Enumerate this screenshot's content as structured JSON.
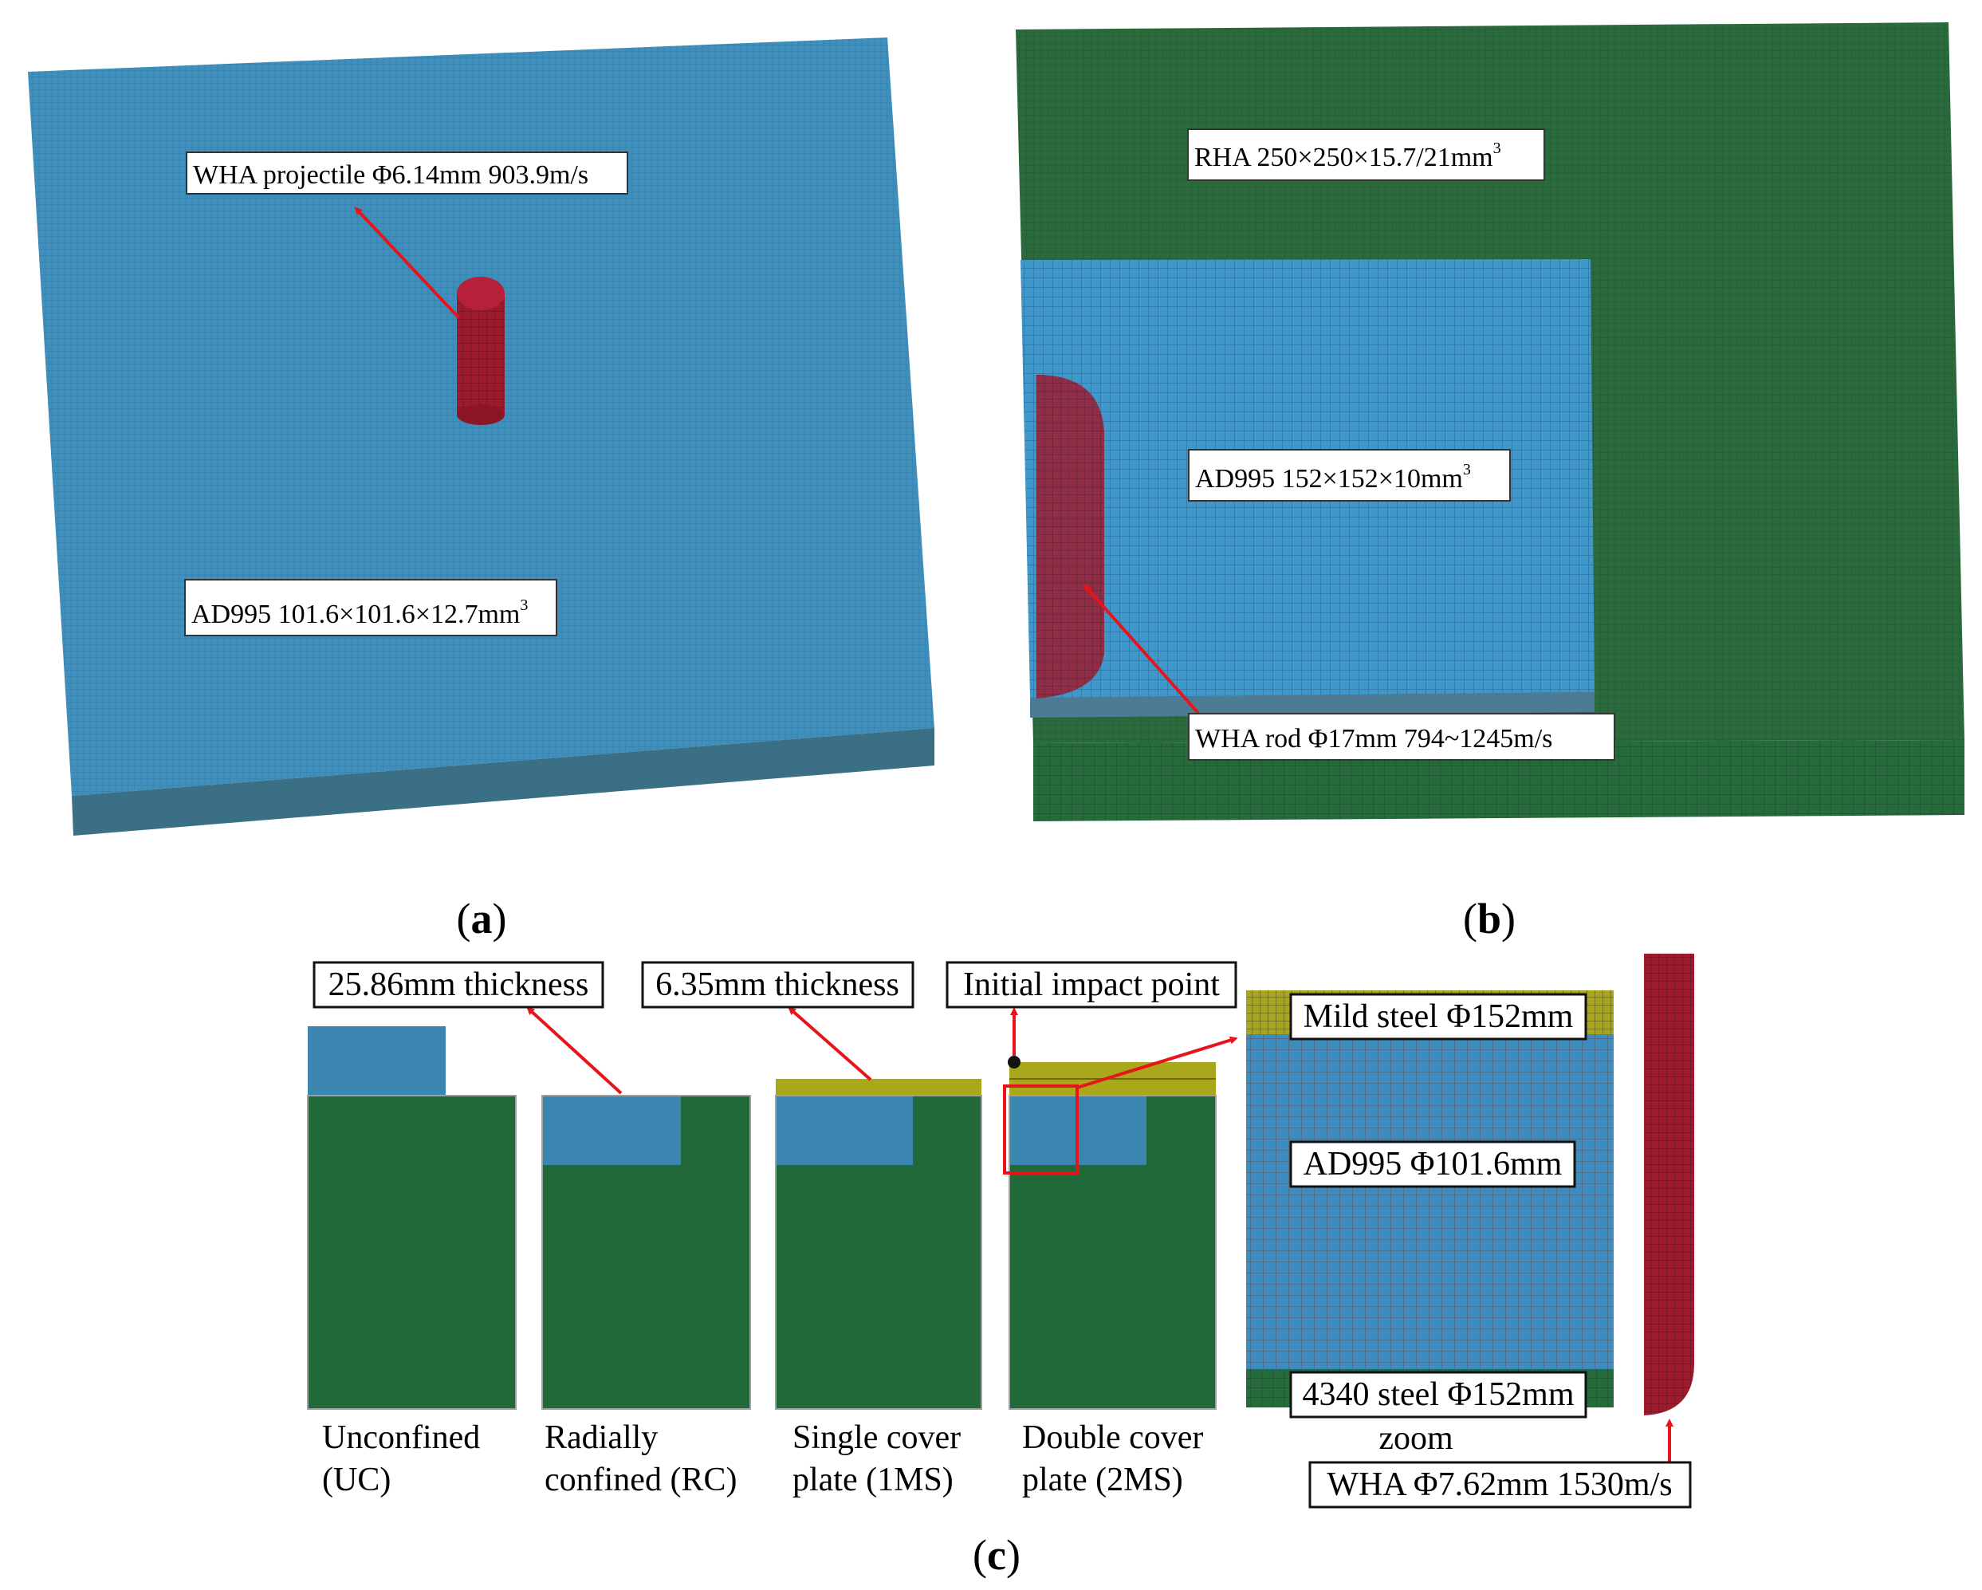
{
  "panel_a": {
    "caption": "(a)",
    "projectile_label": "WHA projectile  Φ6.14mm  903.9m/s",
    "target_label_main": "AD995  101.6×101.6×12.7mm",
    "target_label_sup": "3"
  },
  "panel_b": {
    "caption": "(b)",
    "backing_label_main": "RHA  250×250×15.7/21mm",
    "backing_label_sup": "3",
    "tile_label_main": "AD995  152×152×10mm",
    "tile_label_sup": "3",
    "rod_label": "WHA rod  Φ17mm  794~1245m/s"
  },
  "panel_c": {
    "caption": "(c)",
    "callouts": {
      "thickness_uc": "25.86mm thickness",
      "thickness_cover": "6.35mm thickness",
      "impact_point": "Initial impact point",
      "mild_steel": "Mild steel Φ152mm",
      "ad995": "AD995 Φ101.6mm",
      "steel_4340": "4340 steel Φ152mm",
      "zoom": "zoom",
      "projectile": "WHA Φ7.62mm 1530m/s"
    },
    "configs": [
      {
        "line1": "Unconfined",
        "line2": "(UC)"
      },
      {
        "line1": "Radially",
        "line2": "confined (RC)"
      },
      {
        "line1": "Single cover",
        "line2": "plate (1MS)"
      },
      {
        "line1": "Double cover",
        "line2": "plate (2MS)"
      }
    ]
  },
  "colors": {
    "ceramic_blue": "#3a86b0",
    "mesh_blue": "#3f8fbc",
    "steel_green": "#22693a",
    "mesh_green": "#2a6a3c",
    "cover_yellow": "#a9a81a",
    "projectile_red": "#9e1a2c",
    "arrow_red": "#e8141c"
  }
}
